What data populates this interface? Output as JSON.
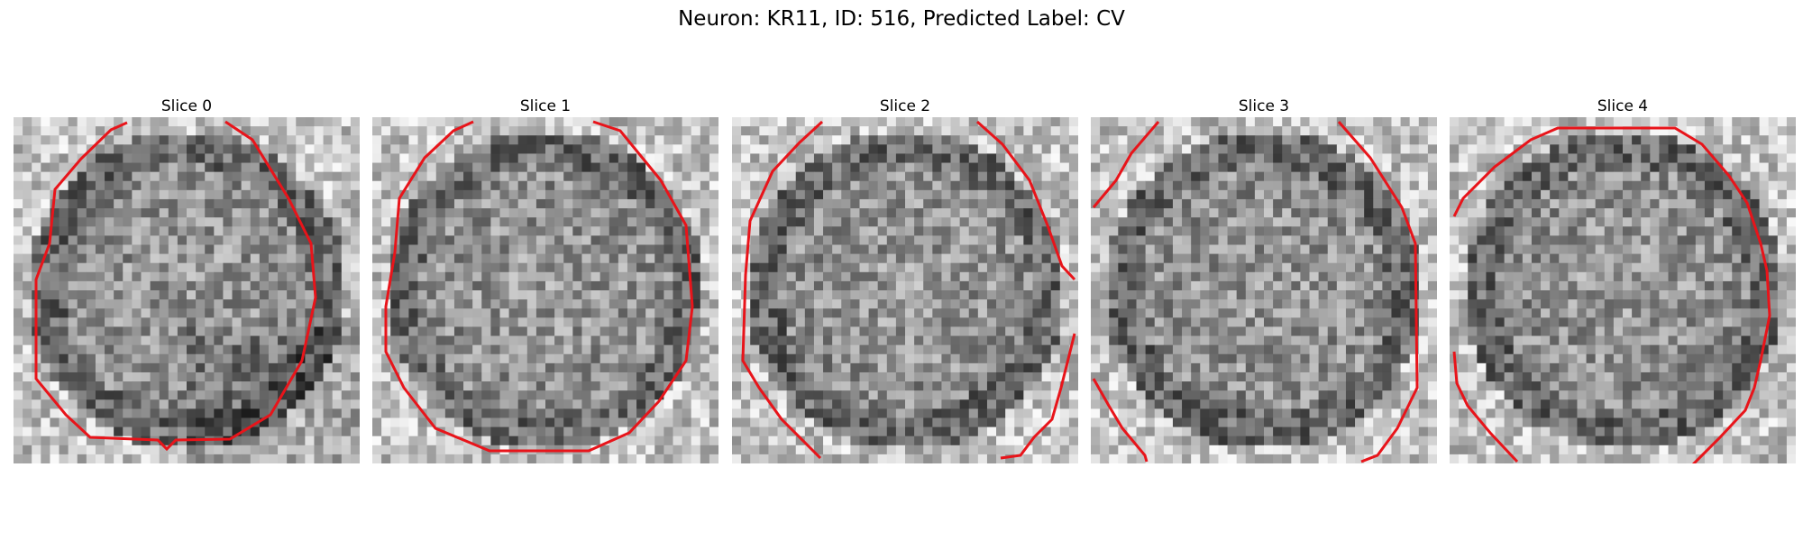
{
  "figure": {
    "title": "Neuron: KR11, ID: 516, Predicted Label: CV"
  },
  "panels": [
    {
      "title": "Slice 0",
      "contour_color": "#e8141a"
    },
    {
      "title": "Slice 1",
      "contour_color": "#e8141a"
    },
    {
      "title": "Slice 2",
      "contour_color": "#e8141a"
    },
    {
      "title": "Slice 3",
      "contour_color": "#e8141a"
    },
    {
      "title": "Slice 4",
      "contour_color": "#e8141a"
    }
  ]
}
